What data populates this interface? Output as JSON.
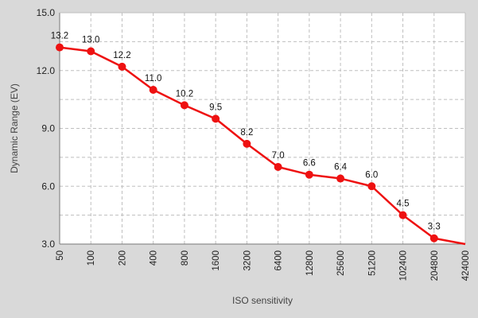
{
  "chart_data": {
    "type": "line",
    "title": "",
    "xlabel": "ISO sensitivity",
    "ylabel": "Dynamic Range (EV)",
    "categories": [
      "50",
      "100",
      "200",
      "400",
      "800",
      "1600",
      "3200",
      "6400",
      "12800",
      "25600",
      "51200",
      "102400",
      "204800",
      "424000"
    ],
    "series": [
      {
        "values": [
          13.2,
          13.0,
          12.2,
          11.0,
          10.2,
          9.5,
          8.2,
          7.0,
          6.6,
          6.4,
          6.0,
          4.5,
          3.3,
          3.0
        ],
        "labels": [
          "13.2",
          "13.0",
          "12.2",
          "11.0",
          "10.2",
          "9.5",
          "8.2",
          "7.0",
          "6.6",
          "6.4",
          "6.0",
          "4.5",
          "3.3",
          ""
        ],
        "markers": [
          true,
          true,
          true,
          true,
          true,
          true,
          true,
          true,
          true,
          true,
          true,
          true,
          true,
          false
        ],
        "color": "#ee1111"
      }
    ],
    "ylim": [
      3.0,
      15.0
    ],
    "yticks": [
      "3.0",
      "6.0",
      "9.0",
      "12.0",
      "15.0"
    ],
    "ytick_values": [
      3,
      6,
      9,
      12,
      15
    ],
    "y_minor_step": 1.5,
    "grid": true,
    "legend": "none",
    "plot_background": "#ffffff",
    "page_background": "#d9d9d9",
    "grid_color": "#bfbfbf"
  }
}
